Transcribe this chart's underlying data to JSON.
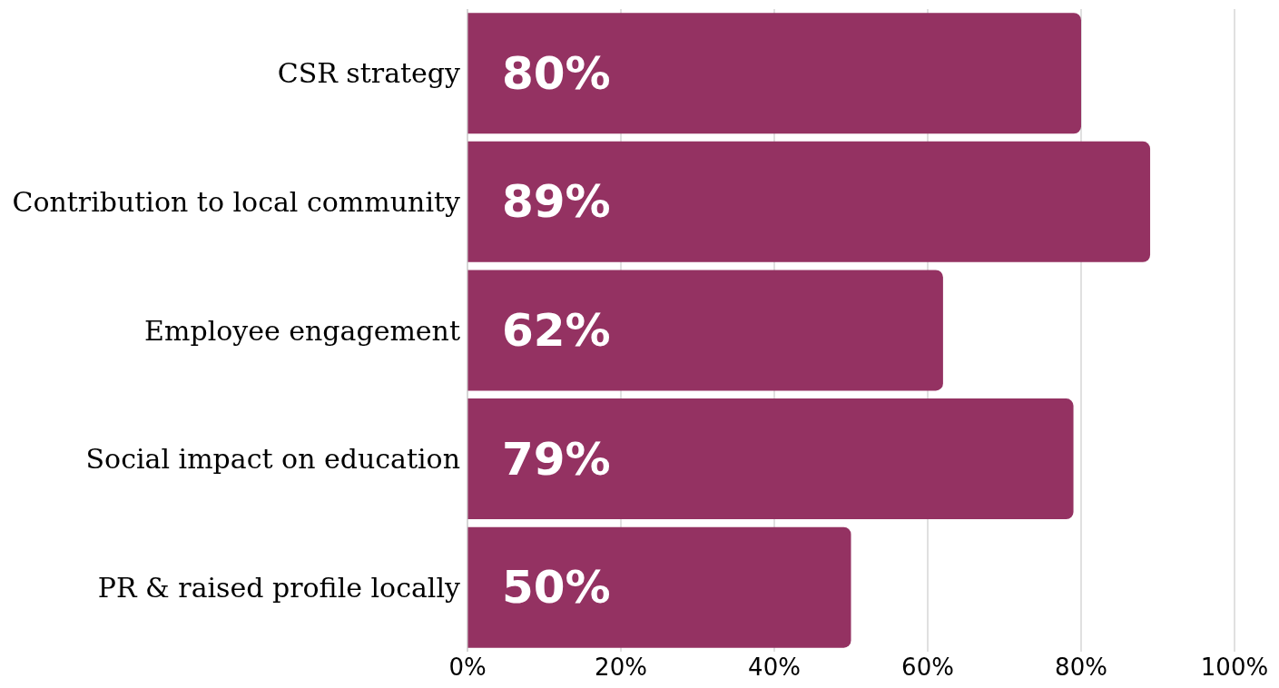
{
  "chart_data": {
    "type": "bar",
    "orientation": "horizontal",
    "categories": [
      "CSR strategy",
      "Contribution to local community",
      "Employee engagement",
      "Social impact on education",
      "PR & raised profile locally"
    ],
    "values": [
      80,
      89,
      62,
      79,
      50
    ],
    "value_labels": [
      "80%",
      "89%",
      "62%",
      "79%",
      "50%"
    ],
    "color": "#943262",
    "xlim": [
      0,
      100
    ],
    "xticks": [
      {
        "value": 0,
        "label": "0%"
      },
      {
        "value": 20,
        "label": "20%"
      },
      {
        "value": 40,
        "label": "40%"
      },
      {
        "value": 60,
        "label": "60%"
      },
      {
        "value": 80,
        "label": "80%"
      },
      {
        "value": 100,
        "label": "100%"
      }
    ],
    "grid": "x"
  }
}
